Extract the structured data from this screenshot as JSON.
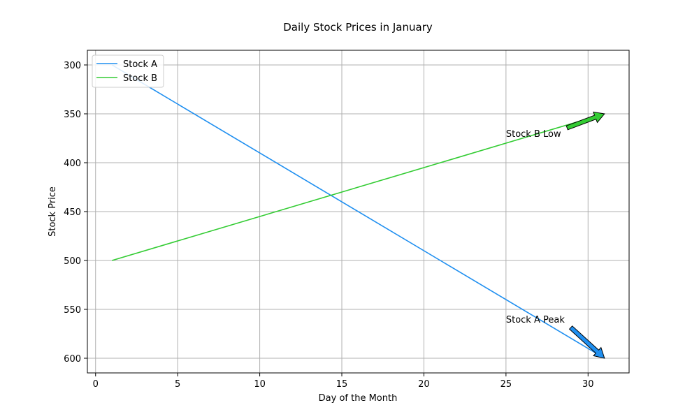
{
  "chart_data": {
    "type": "line",
    "title": "Daily Stock Prices in January",
    "xlabel": "Day of the Month",
    "ylabel": "Stock Price",
    "xlim": [
      -0.5,
      32.5
    ],
    "ylim": [
      615,
      285
    ],
    "y_inverted": true,
    "xticks": [
      0,
      5,
      10,
      15,
      20,
      25,
      30
    ],
    "yticks": [
      300,
      350,
      400,
      450,
      500,
      550,
      600
    ],
    "grid": true,
    "legend_position": "top-left",
    "series": [
      {
        "name": "Stock A",
        "color": "#1f8ff0",
        "x": [
          1,
          31
        ],
        "y": [
          300,
          600
        ]
      },
      {
        "name": "Stock B",
        "color": "#33cc33",
        "x": [
          1,
          31
        ],
        "y": [
          500,
          350
        ]
      }
    ],
    "annotations": [
      {
        "text": "Stock B Low",
        "text_x": 25,
        "text_y": 370,
        "target_x": 31,
        "target_y": 350,
        "color": "#33cc33"
      },
      {
        "text": "Stock A Peak",
        "text_x": 25,
        "text_y": 560,
        "target_x": 31,
        "target_y": 600,
        "color": "#1f8ff0"
      }
    ]
  }
}
